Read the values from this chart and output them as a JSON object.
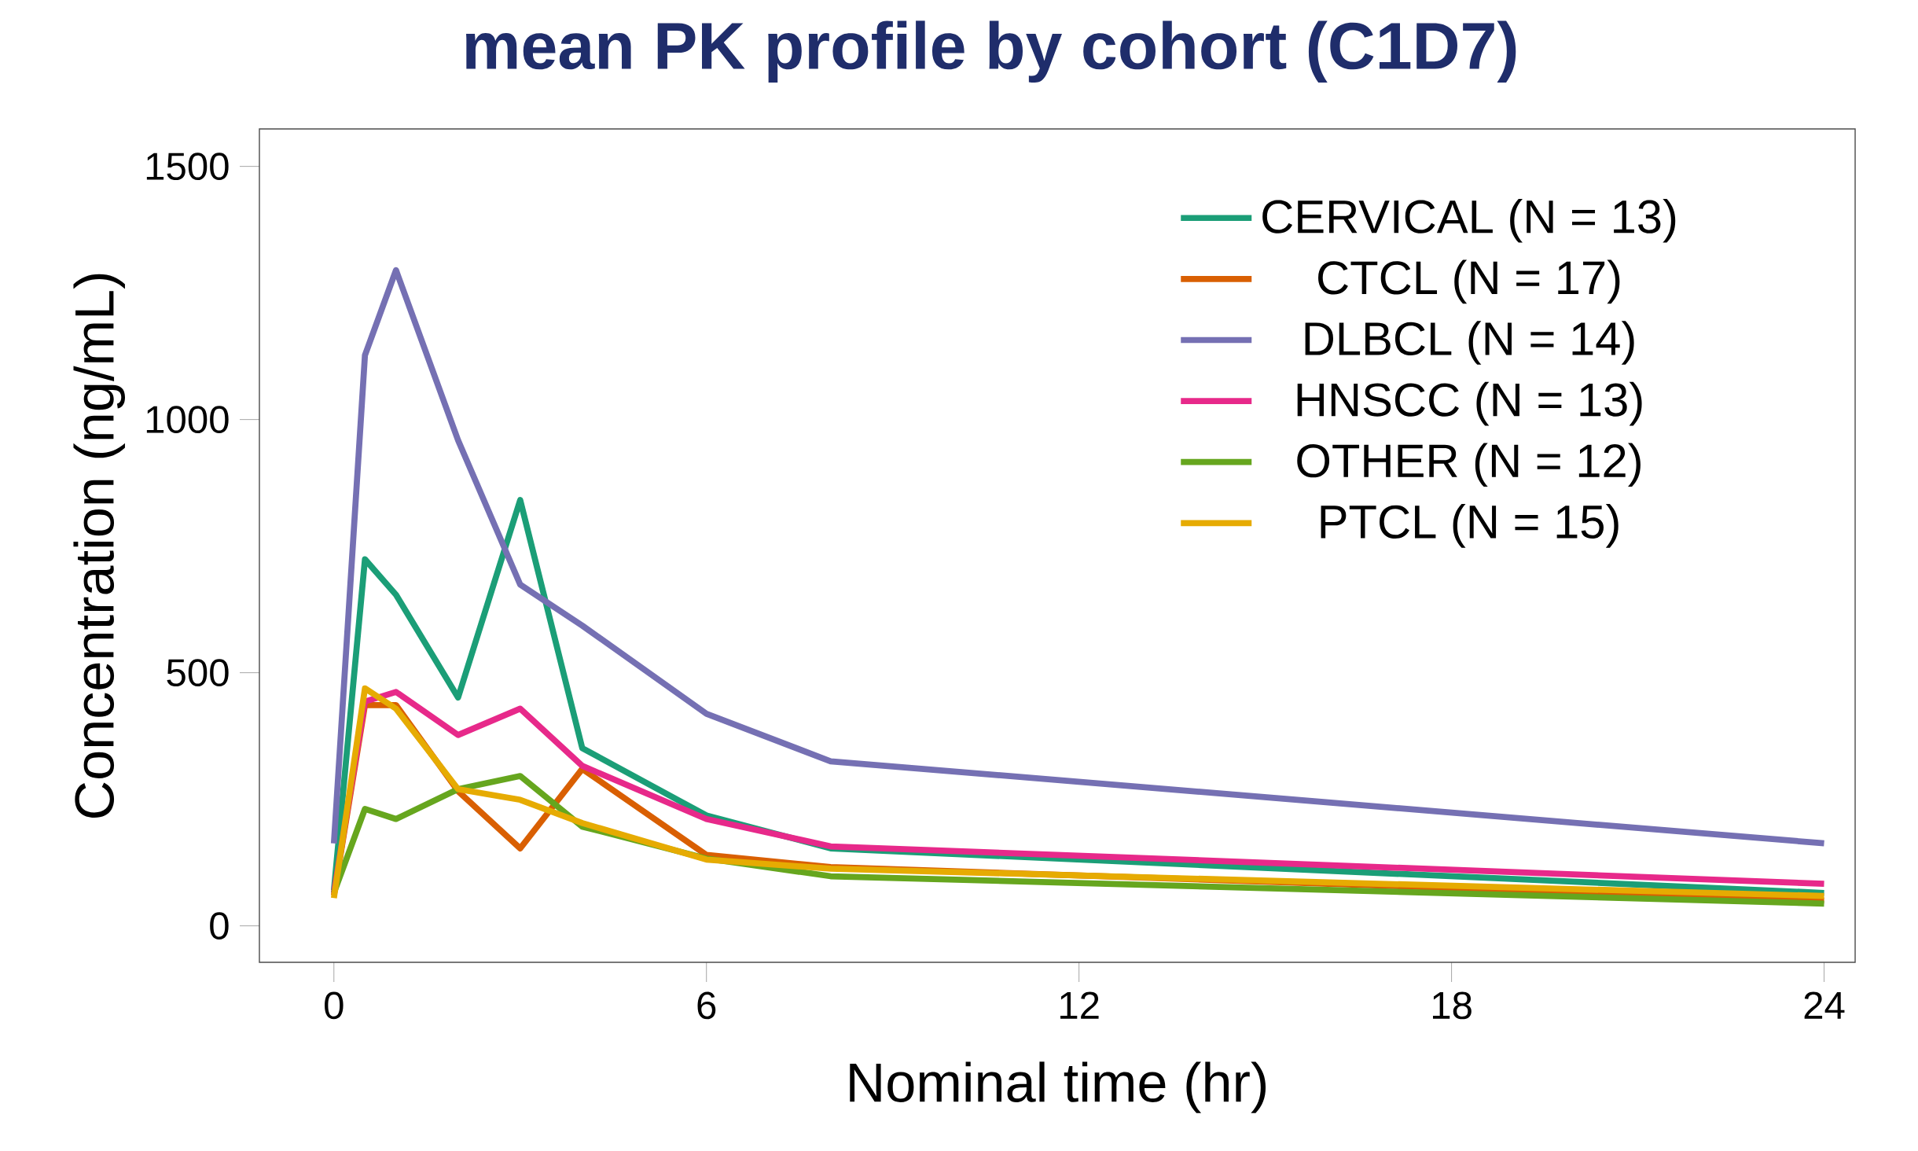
{
  "chart_data": {
    "type": "line",
    "title": "mean PK profile by cohort (C1D7)",
    "xlabel": "Nominal time (hr)",
    "ylabel": "Concentration (ng/mL)",
    "x": [
      0,
      0.5,
      1,
      2,
      3,
      4,
      6,
      8,
      24
    ],
    "series": [
      {
        "name": "CERVICAL (N = 13)",
        "color": "#1b9e77",
        "values": [
          70,
          724,
          654,
          451,
          841,
          351,
          218,
          153,
          65
        ]
      },
      {
        "name": "CTCL (N = 17)",
        "color": "#d95f02",
        "values": [
          60,
          436,
          436,
          266,
          153,
          310,
          140,
          116,
          50
        ]
      },
      {
        "name": "DLBCL (N = 14)",
        "color": "#7570b3",
        "values": [
          163,
          1127,
          1295,
          959,
          674,
          593,
          419,
          325,
          163
        ]
      },
      {
        "name": "HNSCC (N = 13)",
        "color": "#e7298a",
        "values": [
          65,
          443,
          462,
          377,
          429,
          316,
          211,
          157,
          83
        ]
      },
      {
        "name": "OTHER (N = 12)",
        "color": "#66a61e",
        "values": [
          65,
          231,
          211,
          270,
          296,
          196,
          133,
          98,
          44
        ]
      },
      {
        "name": "PTCL (N = 15)",
        "color": "#e6ab02",
        "values": [
          55,
          469,
          429,
          270,
          249,
          203,
          131,
          113,
          59
        ]
      }
    ],
    "xlim": [
      -1.2,
      24.5
    ],
    "ylim": [
      -72,
      1574
    ],
    "xticks": [
      0,
      6,
      12,
      18,
      24
    ],
    "yticks": [
      0,
      500,
      1000,
      1500
    ],
    "grid": false,
    "legend": "top right",
    "marker": "none",
    "line_style": "solid"
  }
}
